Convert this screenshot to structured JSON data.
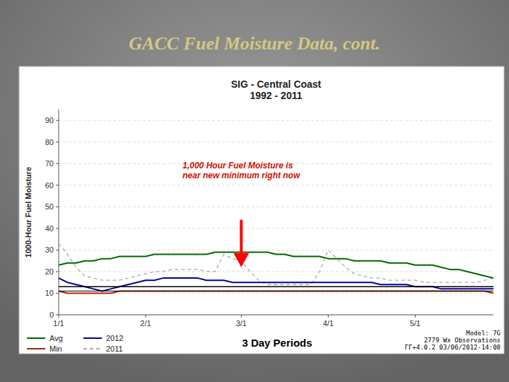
{
  "chart_data": {
    "type": "line",
    "title": "GACC Fuel Moisture Data, cont.",
    "subtitle": "SIG - Central Coast\n1992 - 2011",
    "x_label": "3 Day Periods",
    "y_label": "1000-Hour Fuel Moisture",
    "x": [
      0,
      1,
      2,
      3,
      4,
      5,
      6,
      7,
      8,
      9,
      10,
      11,
      12,
      13,
      14,
      15,
      16,
      17,
      18,
      19,
      20,
      21,
      22,
      23,
      24,
      25,
      26,
      27,
      28,
      29,
      30,
      31,
      32,
      33,
      34,
      35,
      36,
      37,
      38,
      39,
      40,
      41,
      42,
      43,
      44,
      45,
      46,
      47,
      48,
      49,
      50
    ],
    "series": [
      {
        "name": "Avg",
        "color": "#006600",
        "values": [
          23,
          24,
          24,
          25,
          25,
          26,
          26,
          27,
          27,
          27,
          27,
          28,
          28,
          28,
          28,
          28,
          28,
          28,
          29,
          29,
          29,
          29,
          29,
          29,
          29,
          28,
          28,
          27,
          27,
          27,
          27,
          26,
          26,
          26,
          25,
          25,
          25,
          25,
          24,
          24,
          24,
          23,
          23,
          23,
          22,
          21,
          21,
          20,
          19,
          18,
          17
        ]
      },
      {
        "name": "Min",
        "color": "#aa2200",
        "values": [
          11,
          10,
          10,
          10,
          10,
          10,
          10,
          11,
          11,
          11,
          11,
          11,
          11,
          11,
          11,
          11,
          11,
          11,
          11,
          11,
          11,
          11,
          11,
          11,
          11,
          11,
          11,
          11,
          11,
          11,
          11,
          11,
          11,
          11,
          11,
          11,
          11,
          11,
          11,
          11,
          11,
          11,
          11,
          11,
          11,
          11,
          11,
          11,
          11,
          11,
          10
        ]
      },
      {
        "name": "2012",
        "color": "#000099",
        "values": [
          17,
          15,
          14,
          13,
          12,
          11,
          12,
          13,
          14,
          15,
          16,
          16,
          17,
          17,
          17,
          17,
          17,
          16,
          16,
          16,
          15,
          15,
          15,
          15,
          15,
          15,
          15,
          15,
          15,
          15,
          15,
          15,
          15,
          15,
          15,
          15,
          15,
          14,
          14,
          14,
          14,
          13,
          13,
          13,
          12,
          12,
          12,
          12,
          12,
          12,
          12
        ]
      },
      {
        "name": "2011",
        "color": "#aaaaaa",
        "line_style": "dashed",
        "values": [
          33,
          28,
          22,
          18,
          17,
          16,
          16,
          16,
          17,
          18,
          19,
          20,
          20,
          21,
          21,
          21,
          21,
          20,
          20,
          28,
          26,
          25,
          20,
          16,
          14,
          14,
          14,
          14,
          14,
          14,
          20,
          30,
          26,
          22,
          19,
          18,
          17,
          17,
          16,
          16,
          16,
          16,
          15,
          15,
          15,
          15,
          15,
          15,
          15,
          16,
          17
        ]
      }
    ],
    "xlim": [
      0,
      50
    ],
    "xticks": [
      {
        "value": 0,
        "label": "1/1"
      },
      {
        "value": 10,
        "label": "2/1"
      },
      {
        "value": 21,
        "label": "3/1"
      },
      {
        "value": 31,
        "label": "4/1"
      },
      {
        "value": 41,
        "label": "5/1"
      }
    ],
    "ylim": [
      0,
      95
    ],
    "yticks": [
      0,
      10,
      20,
      30,
      40,
      50,
      60,
      70,
      80,
      90
    ],
    "grid": true,
    "legend": "lower left",
    "reference_lines": [
      13,
      11
    ],
    "annotations": [
      {
        "text": "1,000 Hour Fuel Moisture is\nnear new minimum right now",
        "color": "#cc1100"
      }
    ],
    "arrow": {
      "x": 21,
      "y_from": 44,
      "y_to": 22
    },
    "footnote": "Model: 7G\n2779 Wx Observations\nГГ+4.0.2 03/06/2012-14:08"
  }
}
